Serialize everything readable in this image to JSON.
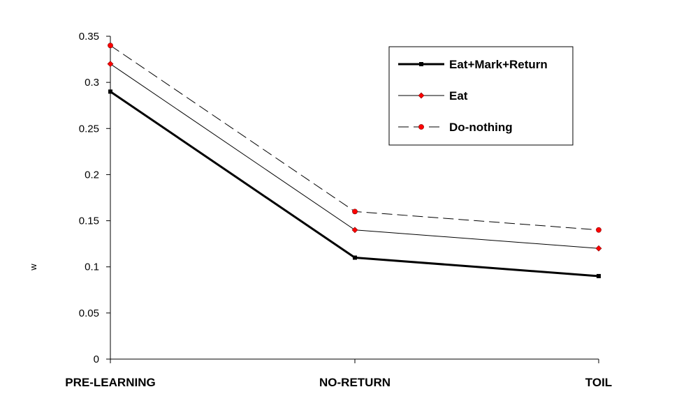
{
  "chart_data": {
    "type": "line",
    "title": "",
    "xlabel": "",
    "ylabel": "w",
    "categories": [
      "PRE-LEARNING",
      "NO-RETURN",
      "TOIL"
    ],
    "ylim": [
      0,
      0.35
    ],
    "yticks": [
      "0",
      "0.05",
      "0.1",
      "0.15",
      "0.2",
      "0.25",
      "0.3",
      "0.35"
    ],
    "grid": false,
    "legend_position": "top-right",
    "series": [
      {
        "name": "Eat+Mark+Return",
        "values": [
          0.29,
          0.11,
          0.09
        ],
        "line_color": "#000000",
        "marker_color": "#000000",
        "marker": "square",
        "line_style": "solid-thick"
      },
      {
        "name": "Eat",
        "values": [
          0.32,
          0.14,
          0.12
        ],
        "line_color": "#000000",
        "marker_color": "#ff0000",
        "marker": "diamond",
        "line_style": "solid-thin"
      },
      {
        "name": "Do-nothing",
        "values": [
          0.34,
          0.16,
          0.14
        ],
        "line_color": "#000000",
        "marker_color": "#ff0000",
        "marker": "circle",
        "line_style": "dashed"
      }
    ]
  }
}
